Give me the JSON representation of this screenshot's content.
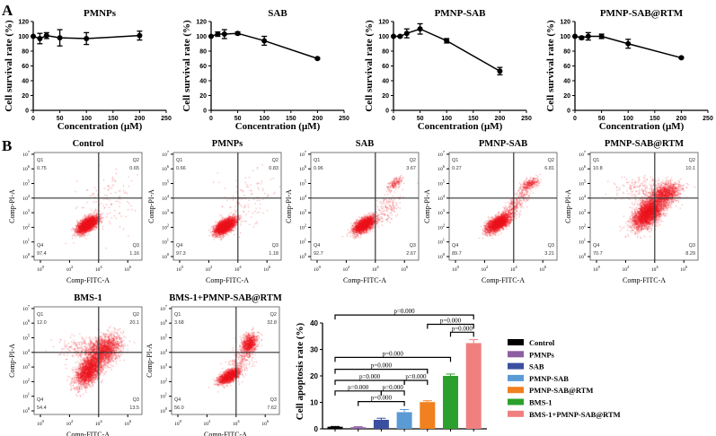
{
  "panel_labels": {
    "a": "A",
    "b": "B"
  },
  "chart_data": [
    {
      "type": "line",
      "panel": "A",
      "title": "PMNPs",
      "xlabel": "Concentration (μM)",
      "ylabel": "Cell survival rate (%)",
      "xlim": [
        0,
        250
      ],
      "ylim": [
        0,
        120
      ],
      "xticks": [
        0,
        50,
        100,
        150,
        200,
        250
      ],
      "yticks": [
        0,
        20,
        40,
        60,
        80,
        100,
        120
      ],
      "x": [
        0,
        12.5,
        25,
        50,
        100,
        200
      ],
      "y": [
        100,
        97,
        101,
        98,
        97,
        101
      ],
      "error": [
        0,
        7,
        4,
        11,
        8,
        6
      ]
    },
    {
      "type": "line",
      "panel": "A",
      "title": "SAB",
      "xlabel": "Concentration (μM)",
      "ylabel": "Cell survival rate (%)",
      "xlim": [
        0,
        250
      ],
      "ylim": [
        0,
        120
      ],
      "xticks": [
        0,
        50,
        100,
        150,
        200,
        250
      ],
      "yticks": [
        0,
        20,
        40,
        60,
        80,
        100,
        120
      ],
      "x": [
        0,
        12.5,
        25,
        50,
        100,
        200
      ],
      "y": [
        100,
        103,
        103,
        104,
        94,
        70
      ],
      "error": [
        0,
        3,
        6,
        2,
        6,
        1
      ]
    },
    {
      "type": "line",
      "panel": "A",
      "title": "PMNP-SAB",
      "xlabel": "Concentration (μM)",
      "ylabel": "Cell survival rate (%)",
      "xlim": [
        0,
        250
      ],
      "ylim": [
        0,
        120
      ],
      "xticks": [
        0,
        50,
        100,
        150,
        200,
        250
      ],
      "yticks": [
        0,
        20,
        40,
        60,
        80,
        100,
        120
      ],
      "x": [
        0,
        12.5,
        25,
        50,
        100,
        200
      ],
      "y": [
        100,
        100,
        104,
        110,
        94,
        53
      ],
      "error": [
        0,
        1,
        6,
        7,
        3,
        5
      ]
    },
    {
      "type": "line",
      "panel": "A",
      "title": "PMNP-SAB@RTM",
      "xlabel": "Concentration (μM)",
      "ylabel": "Cell survival rate (%)",
      "xlim": [
        0,
        250
      ],
      "ylim": [
        0,
        120
      ],
      "xticks": [
        0,
        50,
        100,
        150,
        200,
        250
      ],
      "yticks": [
        0,
        20,
        40,
        60,
        80,
        100,
        120
      ],
      "x": [
        0,
        12.5,
        25,
        50,
        100,
        200
      ],
      "y": [
        100,
        98,
        100,
        100,
        90,
        71
      ],
      "error": [
        0,
        2,
        5,
        3,
        6,
        1
      ]
    },
    {
      "type": "scatter",
      "panel": "B",
      "subtype": "flow-cytometry-quadrants",
      "xlabel": "Comp-FITC-A",
      "ylabel": "Comp-PI-A",
      "xtick_exponents": [
        0,
        2,
        4,
        6
      ],
      "ytick_exponents": [
        0,
        1,
        2,
        3,
        4,
        5,
        6,
        7
      ],
      "gate": {
        "x": 10000,
        "y": 10000
      },
      "plots": [
        {
          "title": "Control",
          "Q1": "0.75",
          "Q2": "0.65",
          "Q3": "1.16",
          "Q4": "97.4"
        },
        {
          "title": "PMNPs",
          "Q1": "0.66",
          "Q2": "0.83",
          "Q3": "1.18",
          "Q4": "97.3"
        },
        {
          "title": "SAB",
          "Q1": "0.96",
          "Q2": "3.67",
          "Q3": "2.67",
          "Q4": "92.7"
        },
        {
          "title": "PMNP-SAB",
          "Q1": "0.27",
          "Q2": "6.81",
          "Q3": "3.21",
          "Q4": "89.7"
        },
        {
          "title": "PMNP-SAB@RTM",
          "Q1": "10.8",
          "Q2": "10.1",
          "Q3": "8.29",
          "Q4": "70.7"
        },
        {
          "title": "BMS-1",
          "Q1": "12.0",
          "Q2": "20.1",
          "Q3": "13.5",
          "Q4": "54.4"
        },
        {
          "title": "BMS-1+PMNP-SAB@RTM",
          "Q1": "3.68",
          "Q2": "32.8",
          "Q3": "7.62",
          "Q4": "56.0"
        }
      ]
    },
    {
      "type": "bar",
      "panel": "B",
      "ylabel": "Cell apoptosis rate (%)",
      "ylim": [
        0,
        40
      ],
      "yticks": [
        0,
        10,
        20,
        30,
        40
      ],
      "categories": [
        "Control",
        "PMNPs",
        "SAB",
        "PMNP-SAB",
        "PMNP-SAB@RTM",
        "BMS-1",
        "BMS-1+PMNP-SAB@RTM"
      ],
      "values": [
        0.8,
        0.6,
        3.4,
        6.3,
        10.1,
        20.0,
        32.4
      ],
      "error": [
        0.1,
        0.2,
        0.6,
        1.0,
        0.5,
        0.7,
        1.3
      ],
      "colors": [
        "#000000",
        "#8e5ea2",
        "#3b4fa0",
        "#5b9bd5",
        "#f0811e",
        "#2ca02c",
        "#f08080"
      ],
      "legend": "right",
      "significance": [
        {
          "from": 0,
          "to": 6,
          "level": 43,
          "label": "p=0.000"
        },
        {
          "from": 4,
          "to": 6,
          "level": 39.5,
          "label": "p=0.000"
        },
        {
          "from": 5,
          "to": 6,
          "level": 36.5,
          "label": "p=0.000"
        },
        {
          "from": 0,
          "to": 5,
          "level": 27,
          "label": "p=0.000"
        },
        {
          "from": 0,
          "to": 4,
          "level": 22.5,
          "label": "p=0.000"
        },
        {
          "from": 0,
          "to": 3,
          "level": 18.3,
          "label": "p=0.000"
        },
        {
          "from": 3,
          "to": 4,
          "level": 18.3,
          "label": "p=0.000"
        },
        {
          "from": 0,
          "to": 2,
          "level": 14.3,
          "label": "p=0.000"
        },
        {
          "from": 2,
          "to": 3,
          "level": 14.3,
          "label": "p=0.000"
        },
        {
          "from": 1,
          "to": 3,
          "level": 10.3,
          "label": "p=0.000"
        }
      ]
    }
  ]
}
